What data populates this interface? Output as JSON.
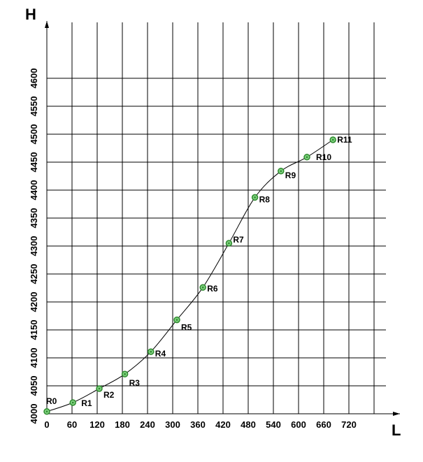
{
  "chart_data": {
    "type": "line",
    "title": "",
    "xlabel": "L",
    "ylabel": "H",
    "xlim": [
      0,
      840
    ],
    "ylim": [
      4000,
      4625
    ],
    "grid": true,
    "x_ticks": [
      0,
      60,
      120,
      180,
      240,
      300,
      360,
      420,
      480,
      540,
      600,
      660,
      720
    ],
    "y_ticks": [
      4000,
      4050,
      4100,
      4150,
      4200,
      4250,
      4300,
      4350,
      4400,
      4450,
      4500,
      4550,
      4600
    ],
    "series": [
      {
        "points": [
          {
            "label": "R0",
            "x": 0,
            "y": 4004
          },
          {
            "label": "R1",
            "x": 62,
            "y": 4020
          },
          {
            "label": "R2",
            "x": 125,
            "y": 4045
          },
          {
            "label": "R3",
            "x": 186,
            "y": 4071
          },
          {
            "label": "R4",
            "x": 248,
            "y": 4111
          },
          {
            "label": "R5",
            "x": 310,
            "y": 4168
          },
          {
            "label": "R6",
            "x": 372,
            "y": 4226
          },
          {
            "label": "R7",
            "x": 434,
            "y": 4305
          },
          {
            "label": "R8",
            "x": 496,
            "y": 4387
          },
          {
            "label": "R9",
            "x": 558,
            "y": 4434
          },
          {
            "label": "R10",
            "x": 620,
            "y": 4459
          },
          {
            "label": "R11",
            "x": 682,
            "y": 4490
          }
        ]
      }
    ],
    "colors": {
      "grid": "#000000",
      "line": "#000000",
      "marker": "#2e8b2e",
      "marker_fill": "#7fd07f"
    }
  }
}
